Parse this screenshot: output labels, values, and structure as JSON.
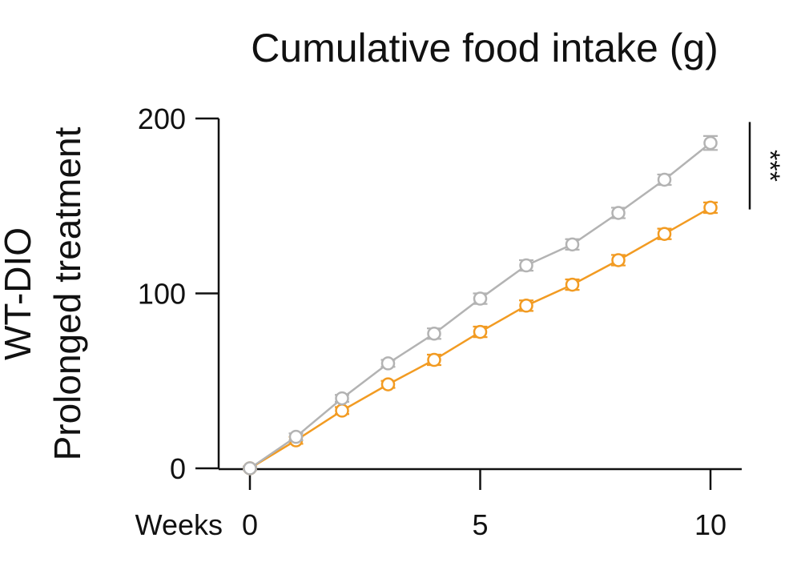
{
  "chart_data": {
    "type": "line",
    "title": "Cumulative food intake (g)",
    "ylabel_line1": "WT-DIO",
    "ylabel_line2": "Prolonged treatment",
    "xlabel": "Weeks",
    "xlim": [
      0,
      10
    ],
    "ylim": [
      0,
      200
    ],
    "x_ticks": [
      0,
      5,
      10
    ],
    "y_ticks": [
      0,
      100,
      200
    ],
    "grid": false,
    "legend": "none",
    "x": [
      0,
      1,
      2,
      3,
      4,
      5,
      6,
      7,
      8,
      9,
      10
    ],
    "series": [
      {
        "color": "#b3b3b3",
        "values": [
          0,
          18,
          40,
          60,
          77,
          97,
          116,
          128,
          146,
          165,
          186
        ],
        "errors": [
          1,
          2,
          2,
          2,
          3,
          3,
          3,
          3,
          3,
          3,
          4
        ]
      },
      {
        "color": "#f29b22",
        "values": [
          0,
          16,
          33,
          48,
          62,
          78,
          93,
          105,
          119,
          134,
          149
        ],
        "errors": [
          1,
          2,
          2,
          2,
          3,
          3,
          3,
          3,
          3,
          3,
          3
        ]
      }
    ],
    "significance": "***"
  }
}
